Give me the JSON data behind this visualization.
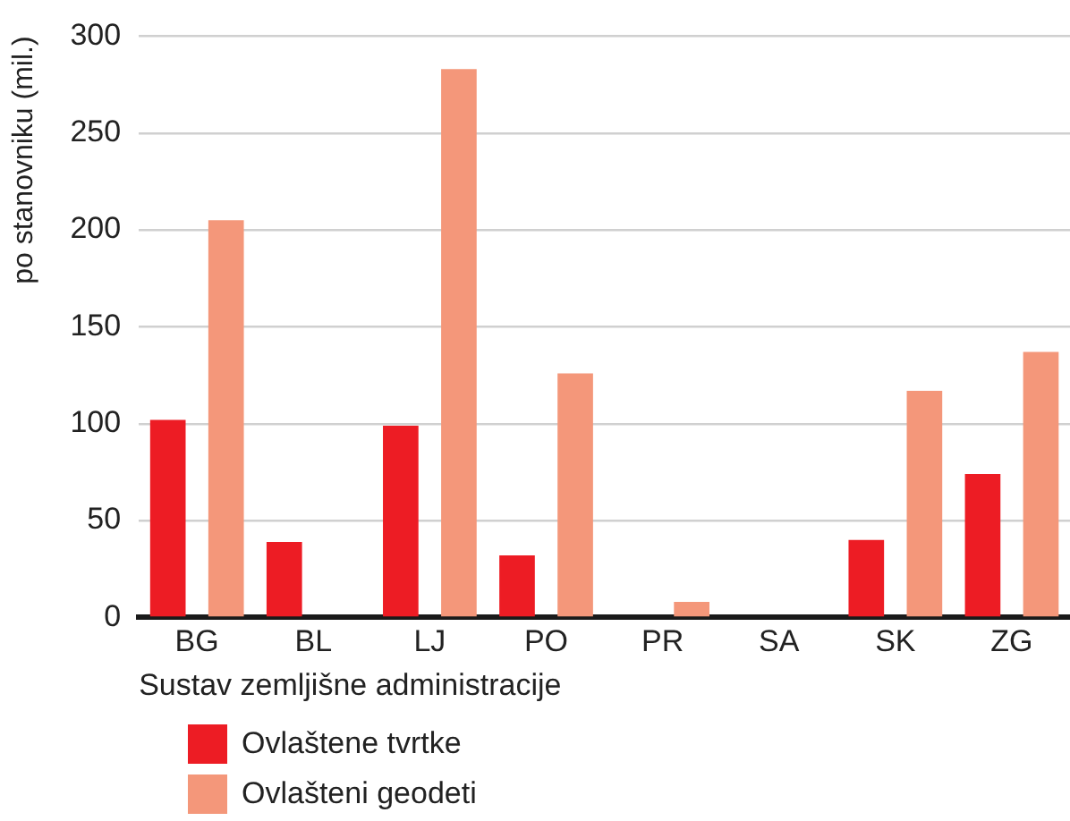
{
  "chart_data": {
    "type": "bar",
    "xlabel": "Sustav zemljišne administracije",
    "ylabel": "po stanovniku (mil.)",
    "categories": [
      "BG",
      "BL",
      "LJ",
      "PO",
      "PR",
      "SA",
      "SK",
      "ZG"
    ],
    "series": [
      {
        "name": "Ovlaštene tvrtke",
        "color": "#ed1c24",
        "values": [
          102,
          39,
          99,
          32,
          null,
          null,
          40,
          74
        ]
      },
      {
        "name": "Ovlašteni geodeti",
        "color": "#f4977a",
        "values": [
          205,
          null,
          283,
          126,
          8,
          null,
          117,
          137
        ]
      }
    ],
    "ylim": [
      0,
      300
    ],
    "yticks": [
      0,
      50,
      100,
      150,
      200,
      250,
      300
    ],
    "grid": "y",
    "legend": "bottom left"
  }
}
